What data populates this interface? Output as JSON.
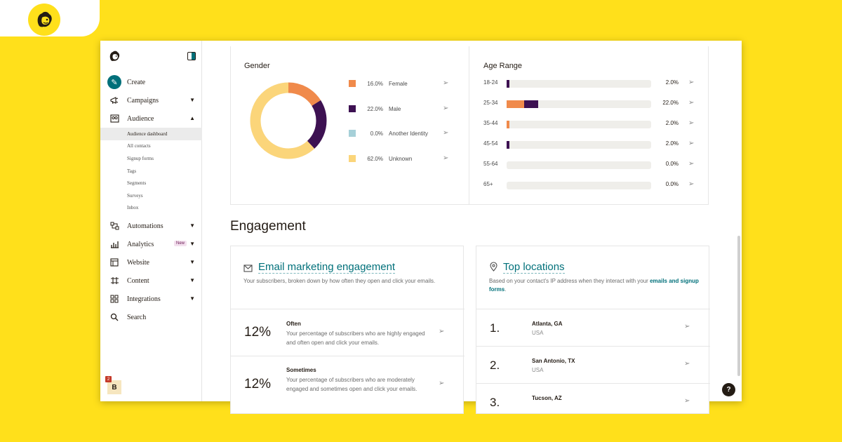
{
  "brand": {
    "logo_icon": "freddie-chimp-icon",
    "accent": "#FFE01B",
    "teal": "#00707a"
  },
  "sidebar": {
    "nav": [
      {
        "label": "Create",
        "icon": "pencil-icon"
      },
      {
        "label": "Campaigns",
        "icon": "megaphone-icon"
      },
      {
        "label": "Audience",
        "icon": "people-icon"
      }
    ],
    "audience_sub": [
      "Audience dashboard",
      "All contacts",
      "Signup forms",
      "Tags",
      "Segments",
      "Surveys",
      "Inbox"
    ],
    "nav2": [
      {
        "label": "Automations",
        "icon": "automation-icon"
      },
      {
        "label": "Analytics",
        "icon": "bar-chart-icon",
        "badge": "New"
      },
      {
        "label": "Website",
        "icon": "website-icon"
      },
      {
        "label": "Content",
        "icon": "content-icon"
      },
      {
        "label": "Integrations",
        "icon": "grid-icon"
      },
      {
        "label": "Search",
        "icon": "search-icon"
      }
    ],
    "user_initial": "B",
    "notification_count": "2"
  },
  "gender": {
    "title": "Gender",
    "items": [
      {
        "pct": "16.0%",
        "label": "Female",
        "value": 16,
        "color": "#F08A4B"
      },
      {
        "pct": "22.0%",
        "label": "Male",
        "value": 22,
        "color": "#3d1152"
      },
      {
        "pct": "0.0%",
        "label": "Another Identity",
        "value": 0,
        "color": "#a6d0d8"
      },
      {
        "pct": "62.0%",
        "label": "Unknown",
        "value": 62,
        "color": "#FBD57A"
      }
    ]
  },
  "age": {
    "title": "Age Range",
    "rows": [
      {
        "label": "18-24",
        "pct": "2.0%",
        "value": 2,
        "segments": [
          {
            "value": 2,
            "color": "#3d1152"
          }
        ]
      },
      {
        "label": "25-34",
        "pct": "22.0%",
        "value": 22,
        "segments": [
          {
            "value": 12,
            "color": "#F08A4B"
          },
          {
            "value": 10,
            "color": "#3d1152"
          }
        ]
      },
      {
        "label": "35-44",
        "pct": "2.0%",
        "value": 2,
        "segments": [
          {
            "value": 2,
            "color": "#F08A4B"
          }
        ]
      },
      {
        "label": "45-54",
        "pct": "2.0%",
        "value": 2,
        "segments": [
          {
            "value": 2,
            "color": "#3d1152"
          }
        ]
      },
      {
        "label": "55-64",
        "pct": "0.0%",
        "value": 0,
        "segments": []
      },
      {
        "label": "65+",
        "pct": "0.0%",
        "value": 0,
        "segments": []
      }
    ]
  },
  "engagement": {
    "section_title": "Engagement",
    "email": {
      "title": "Email marketing engagement",
      "icon": "envelope-icon",
      "desc": "Your subscribers, broken down by how often they open and click your emails.",
      "rows": [
        {
          "pct": "12%",
          "head": "Often",
          "desc": "Your percentage of subscribers who are highly engaged and often open and click your emails."
        },
        {
          "pct": "12%",
          "head": "Sometimes",
          "desc": "Your percentage of subscribers who are moderately engaged and sometimes open and click your emails."
        }
      ]
    },
    "locations": {
      "title": "Top locations",
      "icon": "location-pin-icon",
      "desc": "Based on your contact's IP address when they interact with your",
      "desc_link": "emails and signup forms",
      "rows": [
        {
          "rank": "1.",
          "city": "Atlanta, GA",
          "country": "USA"
        },
        {
          "rank": "2.",
          "city": "San Antonio, TX",
          "country": "USA"
        },
        {
          "rank": "3.",
          "city": "Tucson, AZ",
          "country": ""
        }
      ]
    }
  },
  "help_label": "?"
}
